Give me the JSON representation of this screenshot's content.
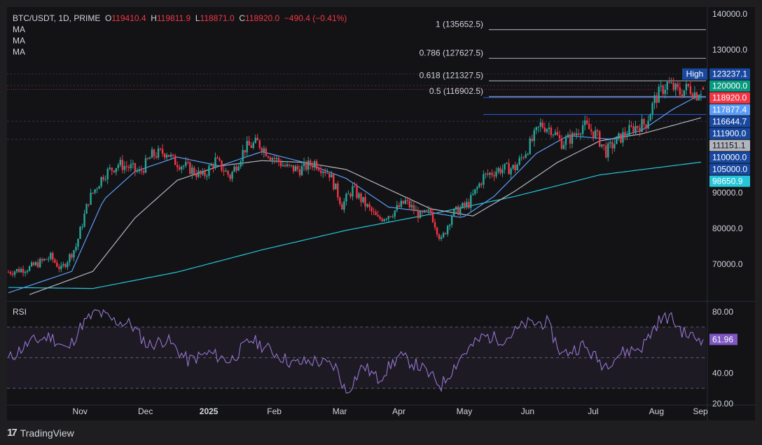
{
  "header": {
    "symbol": "BTC/USDT, 1D, PRIME",
    "o_label": "O",
    "o_value": "119410.4",
    "h_label": "H",
    "h_value": "119811.9",
    "l_label": "L",
    "l_value": "118871.0",
    "c_label": "C",
    "c_value": "118920.0",
    "change": "−490.4 (−0.41%)",
    "ma_lines": [
      "MA",
      "MA",
      "MA"
    ]
  },
  "rsi_title": "RSI",
  "footer": {
    "brand": "TradingView",
    "logo": "17"
  },
  "colors": {
    "up": "#26a69a",
    "down": "#f23645",
    "ma_fast": "#5b9cf6",
    "ma_mid": "#b2b5be",
    "ma_slow": "#26c6da",
    "rsi": "#9575cd",
    "bg": "#131316",
    "frame": "#1e1e21"
  },
  "chart_data": [
    {
      "type": "candlestick",
      "title": "BTC/USDT, 1D",
      "ylim": [
        60000,
        142000
      ],
      "y_ticks": [
        "140000.0",
        "130000.0",
        "90000.0",
        "80000.0",
        "70000.0"
      ],
      "y_tick_values": [
        140000,
        130000,
        90000,
        80000,
        70000
      ],
      "x_ticks": [
        "Nov",
        "Dec",
        "2025",
        "Feb",
        "Mar",
        "Apr",
        "May",
        "Jun",
        "Jul",
        "Aug",
        "Sep"
      ],
      "fib_levels": [
        {
          "label": "1 (135652.5)",
          "value": 135652.5
        },
        {
          "label": "0.786 (127627.5)",
          "value": 127627.5
        },
        {
          "label": "0.618 (121327.5)",
          "value": 121327.5
        },
        {
          "label": "0.5 (116902.5)",
          "value": 116902.5
        }
      ],
      "price_labels": [
        {
          "label": "High",
          "value_text": "123237.1",
          "value": 123237.1,
          "color": "#1848a0"
        },
        {
          "label": "",
          "value_text": "120000.0",
          "value": 120000.0,
          "color": "#089981"
        },
        {
          "label": "",
          "value_text": "118920.0",
          "value": 118920.0,
          "color": "#f23645"
        },
        {
          "label": "",
          "value_text": "117877.4",
          "value": 117877.4,
          "color": "#5b9cf6"
        },
        {
          "label": "",
          "value_text": "116644.7",
          "value": 116644.7,
          "color": "#1848a0"
        },
        {
          "label": "",
          "value_text": "111900.0",
          "value": 111900.0,
          "color": "#1848a0"
        },
        {
          "label": "",
          "value_text": "111151.1",
          "value": 111151.1,
          "color": "#b2b5be"
        },
        {
          "label": "",
          "value_text": "110000.0",
          "value": 110000.0,
          "color": "#1848a0"
        },
        {
          "label": "",
          "value_text": "105000.0",
          "value": 105000.0,
          "color": "#1848a0"
        },
        {
          "label": "",
          "value_text": "98650.9",
          "value": 98650.9,
          "color": "#26c6da"
        }
      ],
      "close_path": [
        {
          "day": 0,
          "close": 67800
        },
        {
          "day": 10,
          "close": 69000
        },
        {
          "day": 20,
          "close": 72000
        },
        {
          "day": 25,
          "close": 68500
        },
        {
          "day": 32,
          "close": 75000
        },
        {
          "day": 38,
          "close": 88000
        },
        {
          "day": 45,
          "close": 95000
        },
        {
          "day": 52,
          "close": 98000
        },
        {
          "day": 58,
          "close": 97000
        },
        {
          "day": 62,
          "close": 95500
        },
        {
          "day": 68,
          "close": 100500
        },
        {
          "day": 75,
          "close": 101500
        },
        {
          "day": 78,
          "close": 99000
        },
        {
          "day": 85,
          "close": 97000
        },
        {
          "day": 92,
          "close": 94500
        },
        {
          "day": 98,
          "close": 99000
        },
        {
          "day": 105,
          "close": 94500
        },
        {
          "day": 112,
          "close": 102500
        },
        {
          "day": 118,
          "close": 104000
        },
        {
          "day": 125,
          "close": 100000
        },
        {
          "day": 132,
          "close": 97000
        },
        {
          "day": 138,
          "close": 96500
        },
        {
          "day": 145,
          "close": 98500
        },
        {
          "day": 152,
          "close": 95500
        },
        {
          "day": 158,
          "close": 86500
        },
        {
          "day": 163,
          "close": 91000
        },
        {
          "day": 170,
          "close": 86000
        },
        {
          "day": 175,
          "close": 82500
        },
        {
          "day": 182,
          "close": 84500
        },
        {
          "day": 188,
          "close": 87500
        },
        {
          "day": 195,
          "close": 83500
        },
        {
          "day": 200,
          "close": 84500
        },
        {
          "day": 205,
          "close": 76500
        },
        {
          "day": 210,
          "close": 84000
        },
        {
          "day": 218,
          "close": 87000
        },
        {
          "day": 225,
          "close": 94500
        },
        {
          "day": 232,
          "close": 96500
        },
        {
          "day": 240,
          "close": 97000
        },
        {
          "day": 247,
          "close": 103500
        },
        {
          "day": 252,
          "close": 109000
        },
        {
          "day": 257,
          "close": 108000
        },
        {
          "day": 262,
          "close": 104000
        },
        {
          "day": 267,
          "close": 105500
        },
        {
          "day": 272,
          "close": 109000
        },
        {
          "day": 278,
          "close": 106500
        },
        {
          "day": 283,
          "close": 101500
        },
        {
          "day": 288,
          "close": 104500
        },
        {
          "day": 292,
          "close": 106500
        },
        {
          "day": 297,
          "close": 108500
        },
        {
          "day": 302,
          "close": 109500
        },
        {
          "day": 306,
          "close": 116000
        },
        {
          "day": 309,
          "close": 118500
        },
        {
          "day": 312,
          "close": 120500
        },
        {
          "day": 318,
          "close": 118000
        },
        {
          "day": 322,
          "close": 119500
        },
        {
          "day": 326,
          "close": 117500
        },
        {
          "day": 329,
          "close": 118920
        }
      ],
      "ma_fast_path": [
        {
          "day": 0,
          "value": 62000
        },
        {
          "day": 30,
          "value": 68000
        },
        {
          "day": 45,
          "value": 88000
        },
        {
          "day": 60,
          "value": 96000
        },
        {
          "day": 80,
          "value": 100000
        },
        {
          "day": 100,
          "value": 97500
        },
        {
          "day": 120,
          "value": 101500
        },
        {
          "day": 140,
          "value": 98500
        },
        {
          "day": 160,
          "value": 94000
        },
        {
          "day": 180,
          "value": 86000
        },
        {
          "day": 200,
          "value": 84500
        },
        {
          "day": 215,
          "value": 83000
        },
        {
          "day": 230,
          "value": 89000
        },
        {
          "day": 250,
          "value": 101000
        },
        {
          "day": 265,
          "value": 106000
        },
        {
          "day": 285,
          "value": 105000
        },
        {
          "day": 300,
          "value": 107500
        },
        {
          "day": 315,
          "value": 113500
        },
        {
          "day": 329,
          "value": 117877
        }
      ],
      "ma_mid_path": [
        {
          "day": 10,
          "value": 61500
        },
        {
          "day": 40,
          "value": 68000
        },
        {
          "day": 60,
          "value": 83000
        },
        {
          "day": 80,
          "value": 93500
        },
        {
          "day": 100,
          "value": 97500
        },
        {
          "day": 120,
          "value": 99000
        },
        {
          "day": 140,
          "value": 98500
        },
        {
          "day": 160,
          "value": 96500
        },
        {
          "day": 180,
          "value": 91000
        },
        {
          "day": 200,
          "value": 85500
        },
        {
          "day": 220,
          "value": 83500
        },
        {
          "day": 240,
          "value": 90500
        },
        {
          "day": 260,
          "value": 98500
        },
        {
          "day": 280,
          "value": 104500
        },
        {
          "day": 300,
          "value": 106500
        },
        {
          "day": 329,
          "value": 111151
        }
      ],
      "ma_slow_path": [
        {
          "day": 0,
          "value": 63500
        },
        {
          "day": 40,
          "value": 63200
        },
        {
          "day": 80,
          "value": 67800
        },
        {
          "day": 120,
          "value": 74000
        },
        {
          "day": 160,
          "value": 79500
        },
        {
          "day": 200,
          "value": 84000
        },
        {
          "day": 240,
          "value": 89000
        },
        {
          "day": 280,
          "value": 95000
        },
        {
          "day": 329,
          "value": 98651
        }
      ]
    },
    {
      "type": "line",
      "title": "RSI",
      "ylim": [
        20,
        85
      ],
      "y_ticks": [
        "80.00",
        "40.00",
        "20.00"
      ],
      "y_tick_values": [
        80,
        40,
        20
      ],
      "band": [
        30,
        70
      ],
      "midline": 50,
      "current_text": "61.96",
      "current": 61.96,
      "rsi_path": [
        {
          "day": 0,
          "value": 49
        },
        {
          "day": 10,
          "value": 60
        },
        {
          "day": 20,
          "value": 64
        },
        {
          "day": 28,
          "value": 55
        },
        {
          "day": 35,
          "value": 72
        },
        {
          "day": 42,
          "value": 80
        },
        {
          "day": 50,
          "value": 74
        },
        {
          "day": 58,
          "value": 72
        },
        {
          "day": 66,
          "value": 58
        },
        {
          "day": 75,
          "value": 62
        },
        {
          "day": 85,
          "value": 48
        },
        {
          "day": 95,
          "value": 53
        },
        {
          "day": 105,
          "value": 48
        },
        {
          "day": 115,
          "value": 62
        },
        {
          "day": 125,
          "value": 54
        },
        {
          "day": 135,
          "value": 46
        },
        {
          "day": 145,
          "value": 48
        },
        {
          "day": 155,
          "value": 44
        },
        {
          "day": 160,
          "value": 27
        },
        {
          "day": 168,
          "value": 45
        },
        {
          "day": 175,
          "value": 36
        },
        {
          "day": 185,
          "value": 51
        },
        {
          "day": 195,
          "value": 44
        },
        {
          "day": 205,
          "value": 32
        },
        {
          "day": 215,
          "value": 52
        },
        {
          "day": 225,
          "value": 64
        },
        {
          "day": 235,
          "value": 62
        },
        {
          "day": 245,
          "value": 72
        },
        {
          "day": 255,
          "value": 73
        },
        {
          "day": 262,
          "value": 52
        },
        {
          "day": 272,
          "value": 58
        },
        {
          "day": 282,
          "value": 45
        },
        {
          "day": 290,
          "value": 53
        },
        {
          "day": 300,
          "value": 57
        },
        {
          "day": 308,
          "value": 74
        },
        {
          "day": 313,
          "value": 77
        },
        {
          "day": 320,
          "value": 66
        },
        {
          "day": 325,
          "value": 63
        },
        {
          "day": 329,
          "value": 61.96
        }
      ]
    }
  ]
}
